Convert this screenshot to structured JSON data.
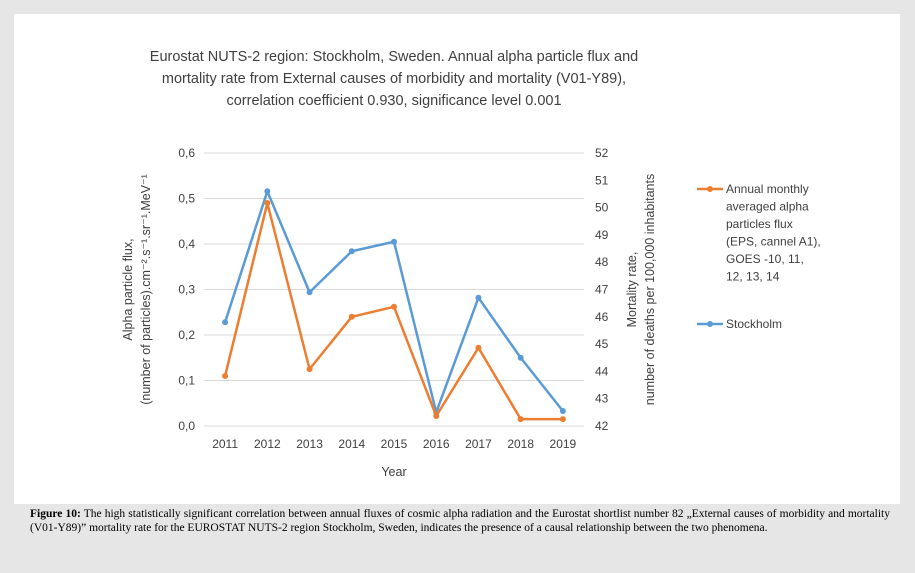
{
  "chart_data": {
    "type": "line",
    "title_lines": [
      "Eurostat NUTS-2 region: Stockholm, Sweden. Annual alpha particle flux and",
      "mortality rate from External causes of morbidity and mortality (V01-Y89),",
      "correlation coefficient 0.930, significance level 0.001"
    ],
    "x": [
      "2011",
      "2012",
      "2013",
      "2014",
      "2015",
      "2016",
      "2017",
      "2018",
      "2019"
    ],
    "xlabel": "Year",
    "y_left": {
      "label_lines": [
        "Alpha particle flux,",
        "(number of particles).cm⁻².s⁻¹.sr⁻¹.MeV⁻¹"
      ],
      "ylim": [
        0,
        0.6
      ],
      "ticks": [
        "0,0",
        "0,1",
        "0,2",
        "0,3",
        "0,4",
        "0,5",
        "0,6"
      ]
    },
    "y_right": {
      "label_lines": [
        "Mortality rate,",
        "number of deaths per 100,000 inhabitants"
      ],
      "ylim": [
        42,
        52
      ],
      "ticks": [
        "42",
        "43",
        "44",
        "45",
        "46",
        "47",
        "48",
        "49",
        "50",
        "51",
        "52"
      ]
    },
    "series": [
      {
        "name_lines": [
          "Annual monthly",
          "averaged alpha",
          "particles flux",
          "(EPS, cannel A1),",
          "GOES -10, 11,",
          "12, 13, 14"
        ],
        "axis": "left",
        "color": "#ED7D31",
        "values": [
          0.11,
          0.49,
          0.125,
          0.24,
          0.262,
          0.022,
          0.172,
          0.015,
          0.015
        ]
      },
      {
        "name_lines": [
          "Stockholm"
        ],
        "axis": "right",
        "color": "#5B9BD5",
        "values": [
          45.8,
          50.6,
          46.9,
          48.4,
          48.75,
          42.5,
          46.7,
          44.5,
          42.55
        ]
      }
    ],
    "grid": true,
    "legend_position": "right"
  },
  "caption": {
    "label": "Figure 10:",
    "text": " The high statistically significant correlation between annual fluxes of cosmic alpha radiation and the Eurostat shortlist number 82 „External causes of morbidity and mortality (V01-Y89)” mortality rate for the EUROSTAT NUTS-2 region Stockholm, Sweden, indicates the presence of a causal relationship between the two phenomena."
  }
}
